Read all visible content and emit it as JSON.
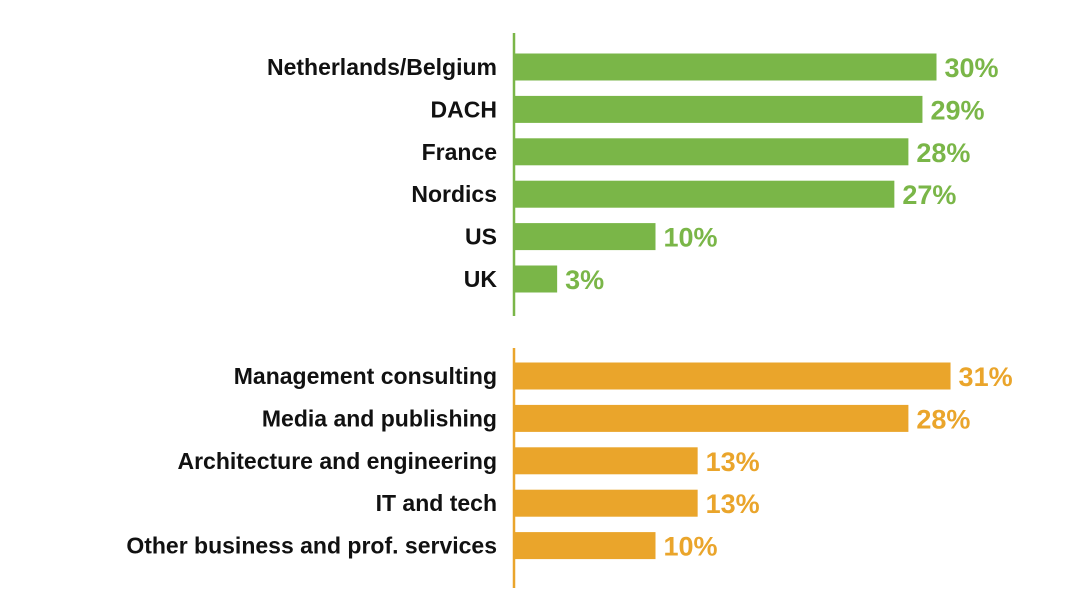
{
  "chart_data": [
    {
      "type": "bar",
      "orientation": "horizontal",
      "color": "#7ab648",
      "value_suffix": "%",
      "categories": [
        "Netherlands/Belgium",
        "DACH",
        "France",
        "Nordics",
        "US",
        "UK"
      ],
      "values": [
        30,
        29,
        28,
        27,
        10,
        3
      ],
      "value_labels": [
        "30%",
        "29%",
        "28%",
        "27%",
        "10%",
        "3%"
      ],
      "title": "",
      "xlabel": "",
      "ylabel": "",
      "xlim": [
        0,
        31
      ],
      "grid": false,
      "legend": "none"
    },
    {
      "type": "bar",
      "orientation": "horizontal",
      "color": "#eaa52b",
      "value_suffix": "%",
      "categories": [
        "Management consulting",
        "Media and publishing",
        "Architecture and engineering",
        "IT and tech",
        "Other business and prof. services"
      ],
      "values": [
        31,
        28,
        13,
        13,
        10
      ],
      "value_labels": [
        "31%",
        "28%",
        "13%",
        "13%",
        "10%"
      ],
      "title": "",
      "xlabel": "",
      "ylabel": "",
      "xlim": [
        0,
        31
      ],
      "grid": false,
      "legend": "none"
    }
  ]
}
